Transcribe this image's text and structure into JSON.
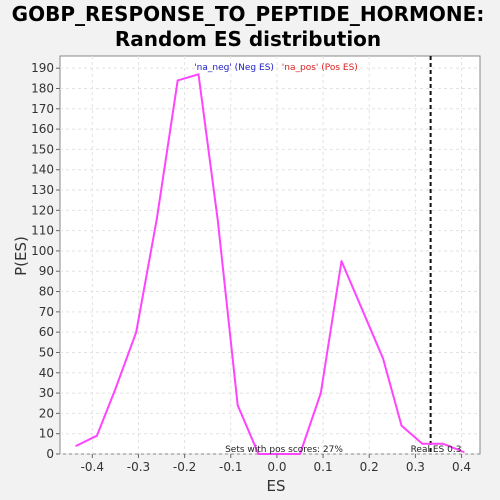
{
  "chart_data": {
    "type": "line",
    "title_line1": "GOBP_RESPONSE_TO_PEPTIDE_HORMONE:",
    "title_line2": "Random ES distribution",
    "xlabel": "ES",
    "ylabel": "P(ES)",
    "xlim": [
      -0.47,
      0.44
    ],
    "ylim": [
      0,
      196
    ],
    "xticks": [
      -0.4,
      -0.3,
      -0.2,
      -0.1,
      0.0,
      0.1,
      0.2,
      0.3,
      0.4
    ],
    "xtick_labels": [
      "-0.4",
      "-0.3",
      "-0.2",
      "-0.1",
      "0.0",
      "0.1",
      "0.2",
      "0.3",
      "0.4"
    ],
    "yticks": [
      0,
      10,
      20,
      30,
      40,
      50,
      60,
      70,
      80,
      90,
      100,
      110,
      120,
      130,
      140,
      150,
      160,
      170,
      180,
      190
    ],
    "grid": true,
    "series": [
      {
        "color": "#ff44ff",
        "x": [
          -0.435,
          -0.39,
          -0.35,
          -0.305,
          -0.26,
          -0.215,
          -0.17,
          -0.128,
          -0.085,
          -0.04,
          0.005,
          0.05,
          0.095,
          0.14,
          0.185,
          0.23,
          0.27,
          0.315,
          0.36,
          0.405
        ],
        "y": [
          4,
          9,
          32,
          60,
          116,
          184,
          187,
          115,
          24,
          0,
          0,
          0,
          30,
          95,
          71,
          47,
          14,
          5,
          5,
          1
        ]
      }
    ],
    "legend": {
      "position": "top-center",
      "neg_label": "'na_neg' (Neg ES)",
      "neg_color": "#2222cc",
      "pos_label": "'na_pos' (Pos ES)",
      "pos_color": "#dd2222"
    },
    "real_es": {
      "value": 0.333,
      "label": "Real ES 0.3"
    },
    "annotation": "Sets with pos scores: 27%"
  }
}
